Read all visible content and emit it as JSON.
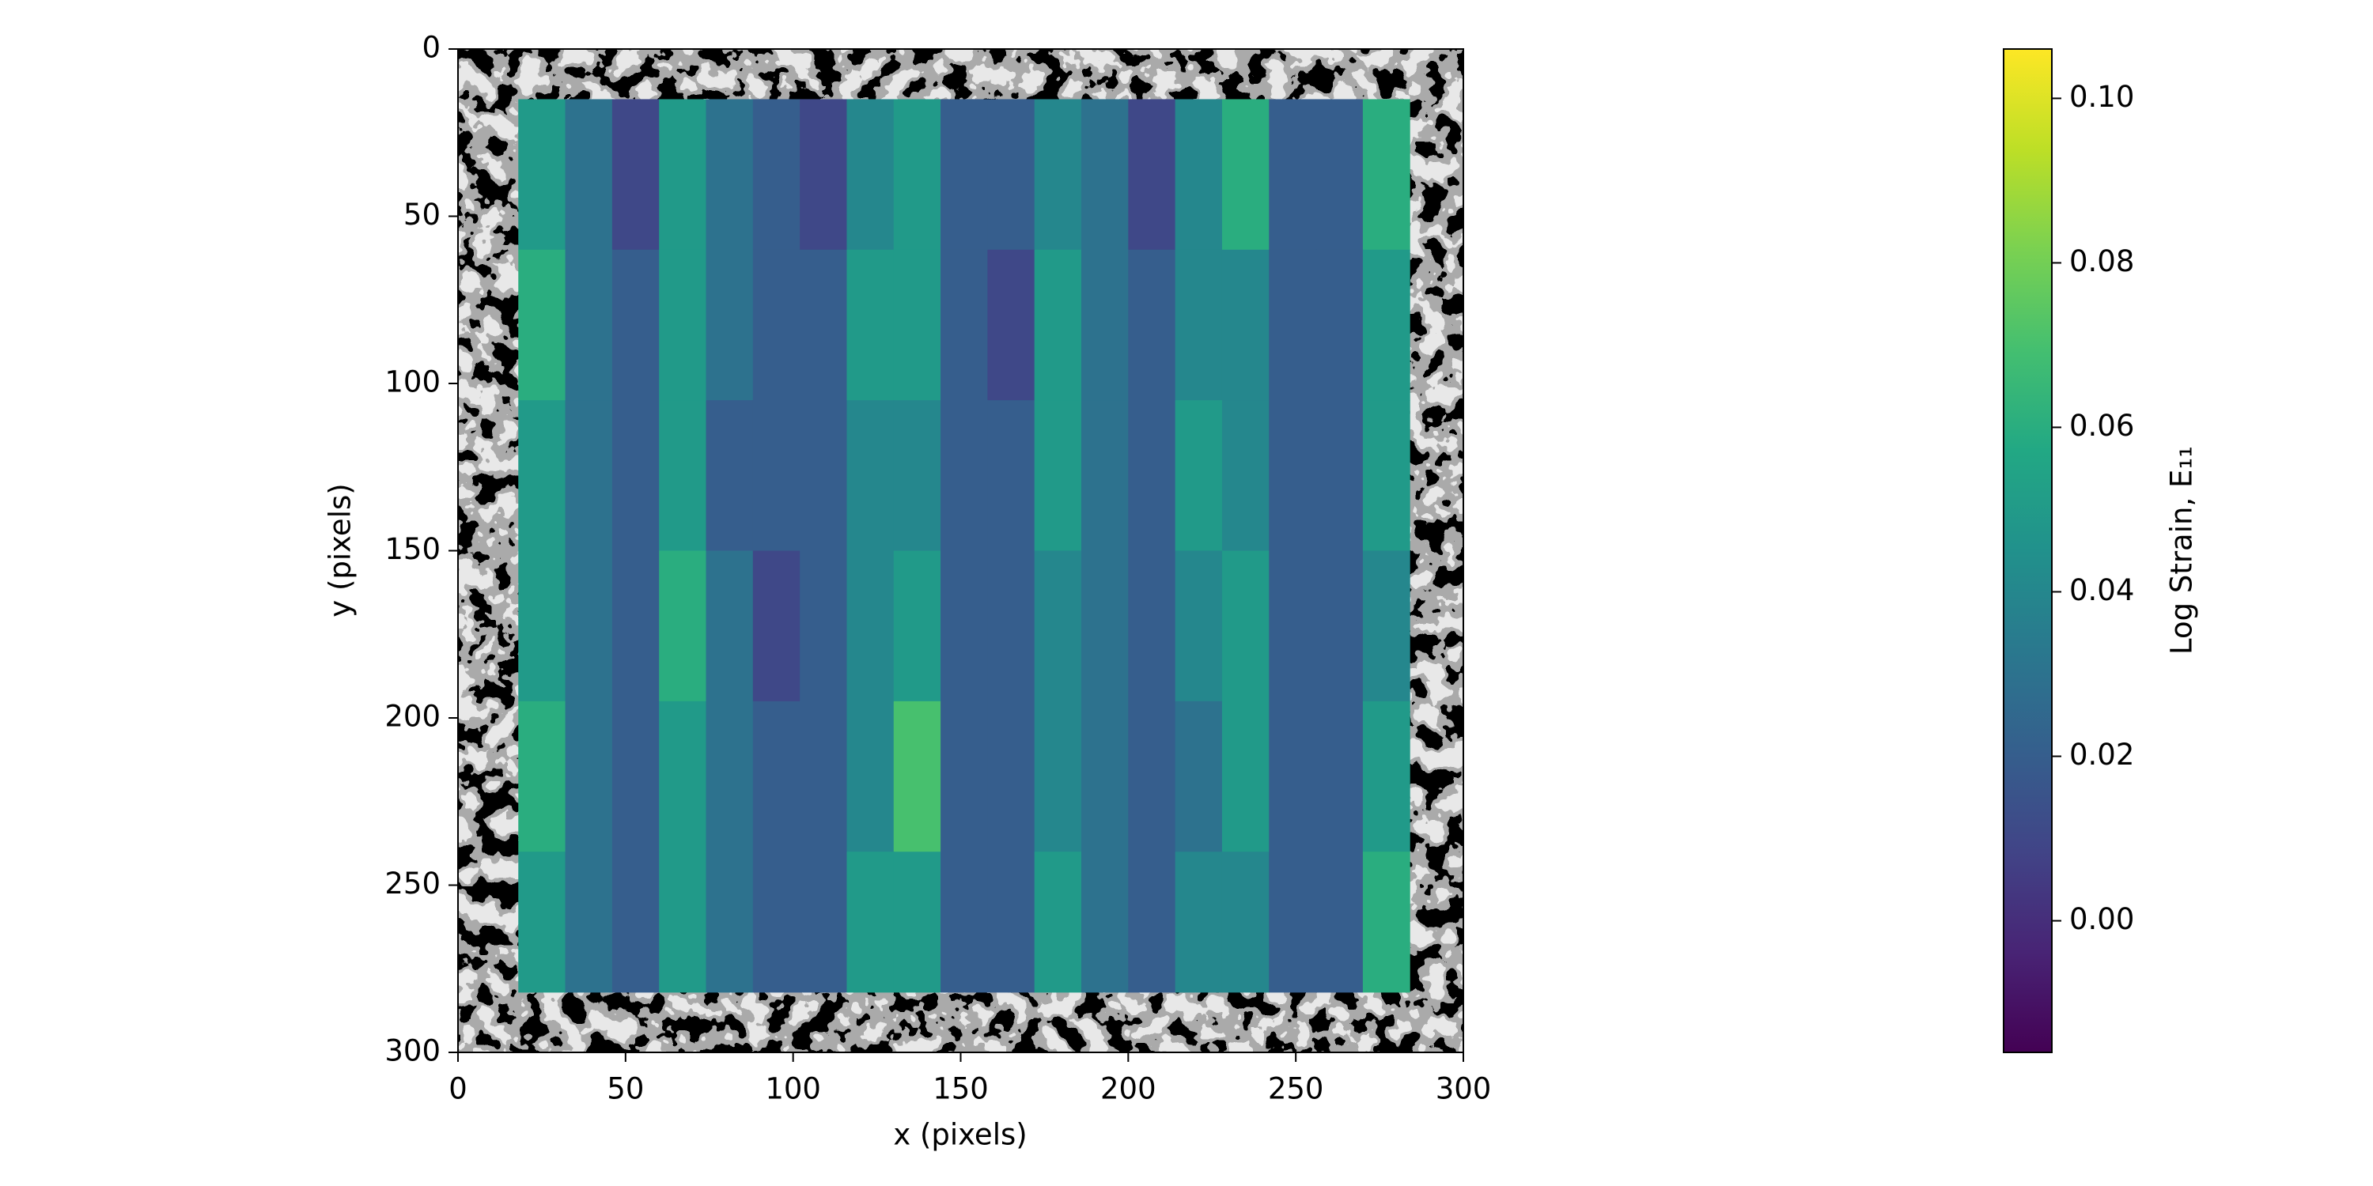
{
  "chart_data": {
    "type": "heatmap",
    "xlabel": "x (pixels)",
    "ylabel": "y (pixels)",
    "xlim": [
      0,
      300
    ],
    "ylim": [
      300,
      0
    ],
    "xticks": [
      0,
      50,
      100,
      150,
      200,
      250,
      300
    ],
    "yticks": [
      0,
      50,
      100,
      150,
      200,
      250,
      300
    ],
    "xbins": [
      18,
      32,
      46,
      60,
      74,
      88,
      102,
      116,
      130,
      144,
      158,
      172,
      186,
      200,
      214,
      228,
      242,
      256,
      270,
      284
    ],
    "ybins": [
      15,
      60,
      105,
      150,
      195,
      240,
      282
    ],
    "z": [
      [
        0.05,
        0.03,
        0.01,
        0.05,
        0.03,
        0.02,
        0.01,
        0.04,
        0.05,
        0.02,
        0.02,
        0.04,
        0.03,
        0.01,
        0.04,
        0.06,
        0.02,
        0.02,
        0.06
      ],
      [
        0.06,
        0.03,
        0.02,
        0.05,
        0.03,
        0.02,
        0.02,
        0.05,
        0.05,
        0.02,
        0.01,
        0.05,
        0.03,
        0.02,
        0.04,
        0.04,
        0.02,
        0.02,
        0.05
      ],
      [
        0.05,
        0.03,
        0.02,
        0.05,
        0.02,
        0.02,
        0.02,
        0.04,
        0.04,
        0.02,
        0.02,
        0.05,
        0.03,
        0.02,
        0.05,
        0.04,
        0.02,
        0.02,
        0.05
      ],
      [
        0.05,
        0.03,
        0.02,
        0.06,
        0.03,
        0.01,
        0.02,
        0.04,
        0.05,
        0.02,
        0.02,
        0.04,
        0.03,
        0.02,
        0.04,
        0.05,
        0.02,
        0.02,
        0.04
      ],
      [
        0.06,
        0.03,
        0.02,
        0.05,
        0.03,
        0.02,
        0.02,
        0.04,
        0.07,
        0.02,
        0.02,
        0.04,
        0.03,
        0.02,
        0.03,
        0.05,
        0.02,
        0.02,
        0.05
      ],
      [
        0.05,
        0.03,
        0.02,
        0.05,
        0.03,
        0.02,
        0.02,
        0.05,
        0.05,
        0.02,
        0.02,
        0.05,
        0.03,
        0.02,
        0.04,
        0.04,
        0.02,
        0.02,
        0.06
      ]
    ],
    "colormap": "viridis",
    "colorbar_label": "Log Strain, E₁₁",
    "clim": [
      -0.016,
      0.106
    ],
    "cticks": [
      {
        "value": 0,
        "label": "0.00"
      },
      0.02,
      0.04,
      0.06,
      0.08,
      {
        "value": 0.1,
        "label": "0.10"
      }
    ]
  }
}
